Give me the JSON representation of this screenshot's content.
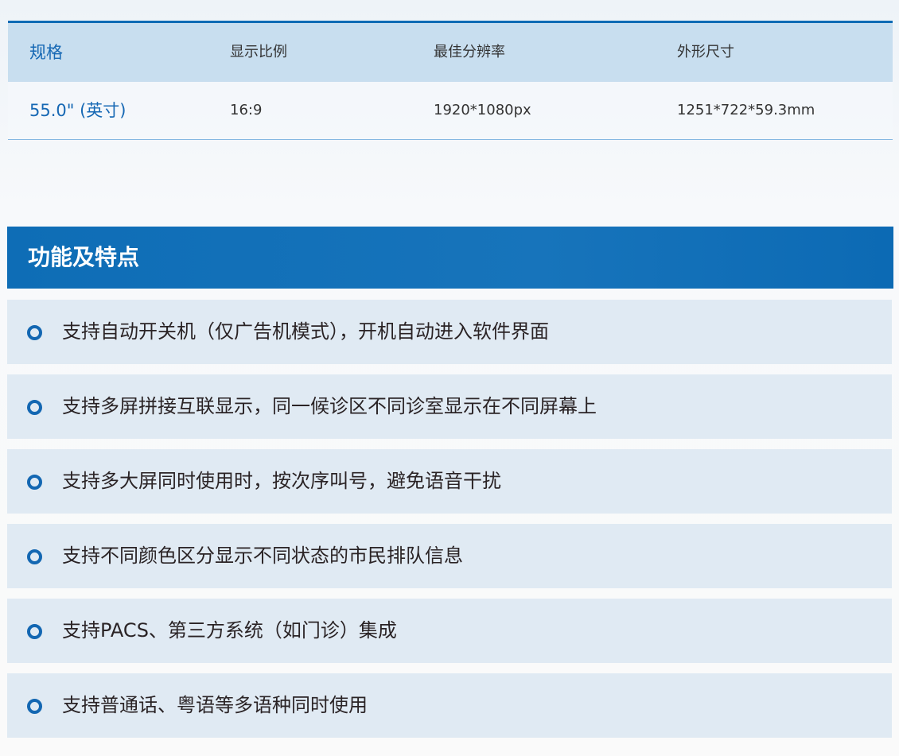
{
  "spec_table": {
    "headers": [
      "规格",
      "显示比例",
      "最佳分辨率",
      "外形尺寸"
    ],
    "values": [
      "55.0\" (英寸)",
      "16:9",
      "1920*1080px",
      "1251*722*59.3mm"
    ]
  },
  "features": {
    "title": "功能及特点",
    "items": [
      "支持自动开关机（仅广告机模式），开机自动进入软件界面",
      "支持多屏拼接互联显示，同一候诊区不同诊室显示在不同屏幕上",
      "支持多大屏同时使用时，按次序叫号，避免语音干扰",
      "支持不同颜色区分显示不同状态的市民排队信息",
      "支持PACS、第三方系统（如门诊）集成",
      "支持普通话、粤语等多语种同时使用"
    ]
  },
  "colors": {
    "accent": "#0e6db6",
    "item_bg": "#e0eaf3"
  }
}
